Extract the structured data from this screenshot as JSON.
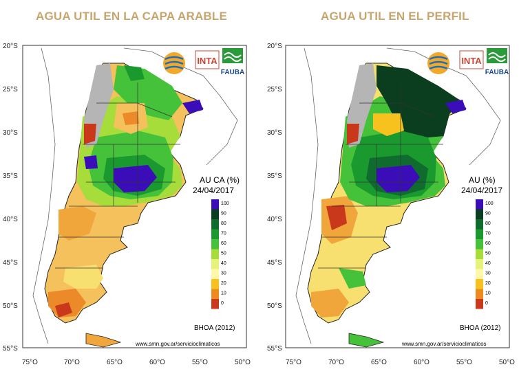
{
  "panels": [
    {
      "title": "AGUA UTIL EN LA CAPA ARABLE",
      "legend_title": "AU CA (%)",
      "date": "24/04/2017"
    },
    {
      "title": "AGUA UTIL EN EL PERFIL",
      "legend_title": "AU (%)",
      "date": "24/04/2017"
    }
  ],
  "lat_ticks": [
    "20°S",
    "25°S",
    "30°S",
    "35°S",
    "40°S",
    "45°S",
    "50°S",
    "55°S"
  ],
  "lon_ticks": [
    "75°O",
    "70°O",
    "65°O",
    "60°O",
    "55°O",
    "50°O"
  ],
  "legend_values": [
    "100",
    "90",
    "80",
    "70",
    "60",
    "50",
    "40",
    "30",
    "20",
    "10",
    "0"
  ],
  "legend_colors": [
    "#3a0db8",
    "#0b3d1f",
    "#0f6b2e",
    "#1a9a2e",
    "#46c23a",
    "#a6dd3a",
    "#e7f27a",
    "#fff8a8",
    "#f7c21d",
    "#ef8a1f",
    "#c9381a"
  ],
  "source_label": "BHOA (2012)",
  "website": "www.smn.gov.ar/servicioclimaticos",
  "logos": {
    "inta": "INTA",
    "fauba": "FAUBA"
  }
}
